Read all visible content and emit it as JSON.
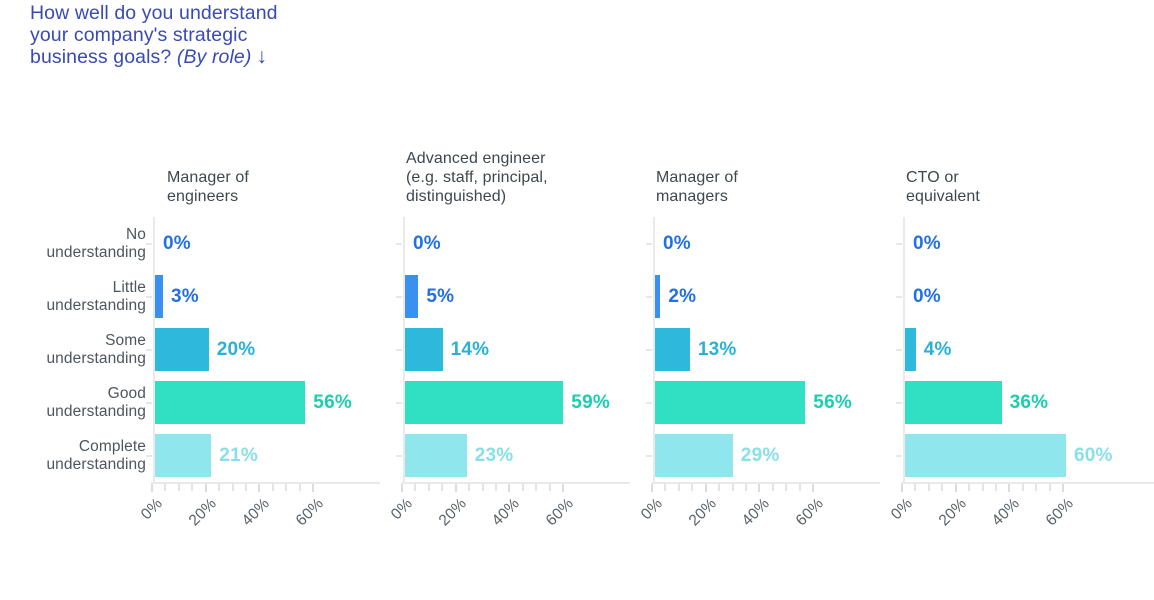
{
  "page": {
    "background": "#ffffff"
  },
  "title": {
    "line1": "How well do you understand",
    "line2": "your company's strategic",
    "line3_prefix": "business goals? ",
    "line3_italic": "(By role)",
    "arrow": "↓",
    "color": "#3a4ab4"
  },
  "chart_data": {
    "type": "bar",
    "orientation": "horizontal",
    "title": "How well do you understand your company's strategic business goals? (By role)",
    "categories": [
      "No understanding",
      "Little understanding",
      "Some understanding",
      "Good understanding",
      "Complete understanding"
    ],
    "category_label_lines": [
      [
        "No",
        "understanding"
      ],
      [
        "Little",
        "understanding"
      ],
      [
        "Some",
        "understanding"
      ],
      [
        "Good",
        "understanding"
      ],
      [
        "Complete",
        "understanding"
      ]
    ],
    "series": [
      {
        "name": "Manager of engineers",
        "label_lines": [
          "Manager of",
          "engineers"
        ],
        "values": [
          0,
          3,
          20,
          56,
          21
        ],
        "value_labels": [
          "0%",
          "3%",
          "20%",
          "56%",
          "21%"
        ]
      },
      {
        "name": "Advanced engineer (e.g. staff, principal, distinguished)",
        "label_lines": [
          "Advanced engineer",
          "(e.g. staff, principal,",
          "distinguished)"
        ],
        "values": [
          0,
          5,
          14,
          59,
          23
        ],
        "value_labels": [
          "0%",
          "5%",
          "14%",
          "59%",
          "23%"
        ]
      },
      {
        "name": "Manager of managers",
        "label_lines": [
          "Manager of",
          "managers"
        ],
        "values": [
          0,
          2,
          13,
          56,
          29
        ],
        "value_labels": [
          "0%",
          "2%",
          "13%",
          "56%",
          "29%"
        ]
      },
      {
        "name": "CTO or equivalent",
        "label_lines": [
          "CTO or",
          "equivalent"
        ],
        "values": [
          0,
          0,
          4,
          36,
          60
        ],
        "value_labels": [
          "0%",
          "0%",
          "4%",
          "36%",
          "60%"
        ]
      }
    ],
    "x_tick_labels": [
      "0%",
      "20%",
      "40%",
      "60%"
    ],
    "x_major_tick_step": 20,
    "x_minor_tick_step": 5,
    "xlim": [
      0,
      84
    ],
    "grid": false,
    "legend": false,
    "category_colors": [
      {
        "category": "No understanding",
        "bar": "#2170e4",
        "text": "#2170e4"
      },
      {
        "category": "Little understanding",
        "bar": "#3990f0",
        "text": "#2170e4"
      },
      {
        "category": "Some understanding",
        "bar": "#2eb8dc",
        "text": "#29b2d8"
      },
      {
        "category": "Good understanding",
        "bar": "#31e0c2",
        "text": "#19cfad"
      },
      {
        "category": "Complete understanding",
        "bar": "#8fe6ec",
        "text": "#87dfe8"
      }
    ],
    "axis_color": "#eaeaea"
  }
}
